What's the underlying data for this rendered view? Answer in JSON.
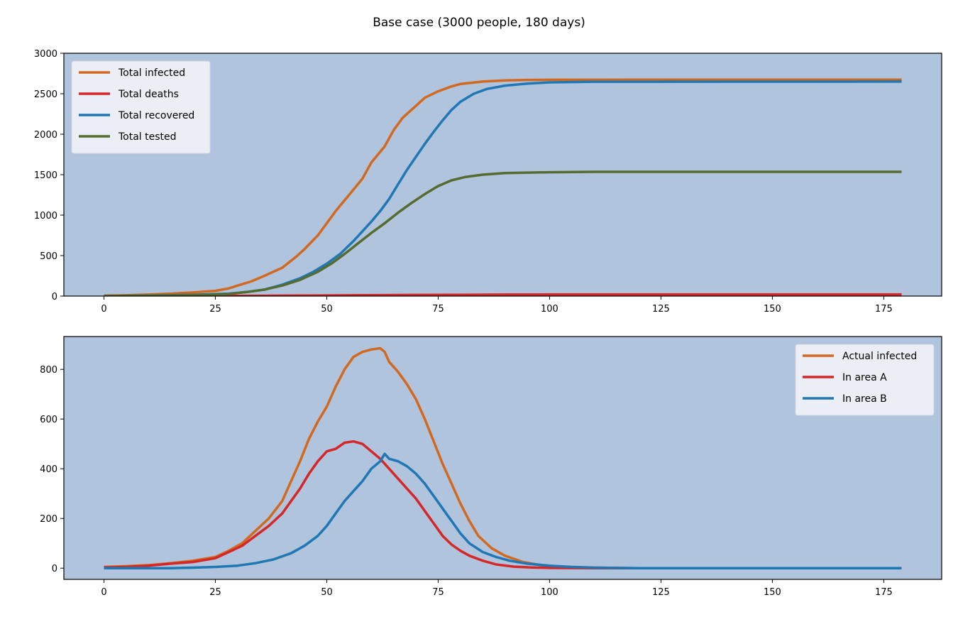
{
  "figure": {
    "title": "Base case (3000 people, 180 days)"
  },
  "colors": {
    "panel_background": "#b0c4de",
    "infected": "#d2691e",
    "deaths": "#d62728",
    "recovered": "#1f77b4",
    "tested": "#556b2f"
  },
  "chart_data": [
    {
      "type": "line",
      "xlabel": "",
      "ylabel": "",
      "xlim": [
        -9,
        188
      ],
      "ylim": [
        0,
        3000
      ],
      "xticks": [
        0,
        25,
        50,
        75,
        100,
        125,
        150,
        175
      ],
      "yticks": [
        0,
        500,
        1000,
        1500,
        2000,
        2500,
        3000
      ],
      "legend_position": "upper-left",
      "grid": false,
      "series": [
        {
          "name": "Total infected",
          "color": "#d2691e",
          "points": [
            [
              0,
              5
            ],
            [
              5,
              10
            ],
            [
              10,
              18
            ],
            [
              15,
              30
            ],
            [
              20,
              45
            ],
            [
              25,
              65
            ],
            [
              28,
              95
            ],
            [
              30,
              130
            ],
            [
              33,
              180
            ],
            [
              36,
              250
            ],
            [
              40,
              350
            ],
            [
              43,
              480
            ],
            [
              45,
              580
            ],
            [
              48,
              750
            ],
            [
              50,
              900
            ],
            [
              52,
              1050
            ],
            [
              55,
              1250
            ],
            [
              58,
              1450
            ],
            [
              60,
              1650
            ],
            [
              63,
              1850
            ],
            [
              65,
              2050
            ],
            [
              67,
              2200
            ],
            [
              70,
              2350
            ],
            [
              72,
              2450
            ],
            [
              75,
              2530
            ],
            [
              78,
              2590
            ],
            [
              80,
              2620
            ],
            [
              85,
              2650
            ],
            [
              90,
              2665
            ],
            [
              95,
              2670
            ],
            [
              100,
              2672
            ],
            [
              120,
              2673
            ],
            [
              179,
              2673
            ]
          ]
        },
        {
          "name": "Total deaths",
          "color": "#d62728",
          "points": [
            [
              0,
              0
            ],
            [
              30,
              2
            ],
            [
              40,
              5
            ],
            [
              50,
              8
            ],
            [
              60,
              11
            ],
            [
              70,
              14
            ],
            [
              80,
              16
            ],
            [
              90,
              18
            ],
            [
              100,
              19
            ],
            [
              179,
              19
            ]
          ]
        },
        {
          "name": "Total recovered",
          "color": "#1f77b4",
          "points": [
            [
              0,
              0
            ],
            [
              20,
              15
            ],
            [
              28,
              30
            ],
            [
              32,
              50
            ],
            [
              36,
              80
            ],
            [
              40,
              140
            ],
            [
              44,
              220
            ],
            [
              47,
              300
            ],
            [
              50,
              400
            ],
            [
              53,
              520
            ],
            [
              56,
              680
            ],
            [
              58,
              800
            ],
            [
              60,
              920
            ],
            [
              62,
              1050
            ],
            [
              64,
              1200
            ],
            [
              66,
              1380
            ],
            [
              68,
              1560
            ],
            [
              70,
              1720
            ],
            [
              72,
              1880
            ],
            [
              74,
              2030
            ],
            [
              76,
              2170
            ],
            [
              78,
              2300
            ],
            [
              80,
              2400
            ],
            [
              83,
              2500
            ],
            [
              86,
              2560
            ],
            [
              90,
              2600
            ],
            [
              95,
              2625
            ],
            [
              100,
              2640
            ],
            [
              110,
              2648
            ],
            [
              179,
              2650
            ]
          ]
        },
        {
          "name": "Total tested",
          "color": "#556b2f",
          "points": [
            [
              0,
              0
            ],
            [
              20,
              10
            ],
            [
              28,
              25
            ],
            [
              32,
              50
            ],
            [
              36,
              80
            ],
            [
              40,
              130
            ],
            [
              44,
              200
            ],
            [
              48,
              300
            ],
            [
              51,
              400
            ],
            [
              54,
              520
            ],
            [
              57,
              650
            ],
            [
              60,
              780
            ],
            [
              63,
              900
            ],
            [
              66,
              1030
            ],
            [
              69,
              1150
            ],
            [
              72,
              1260
            ],
            [
              75,
              1360
            ],
            [
              78,
              1430
            ],
            [
              81,
              1470
            ],
            [
              85,
              1500
            ],
            [
              90,
              1520
            ],
            [
              100,
              1530
            ],
            [
              110,
              1535
            ],
            [
              179,
              1535
            ]
          ]
        }
      ]
    },
    {
      "type": "line",
      "xlabel": "",
      "ylabel": "",
      "xlim": [
        -9,
        188
      ],
      "ylim": [
        -45,
        932
      ],
      "xticks": [
        0,
        25,
        50,
        75,
        100,
        125,
        150,
        175
      ],
      "yticks": [
        0,
        200,
        400,
        600,
        800
      ],
      "legend_position": "upper-right",
      "grid": false,
      "series": [
        {
          "name": "Actual infected",
          "color": "#d2691e",
          "points": [
            [
              0,
              5
            ],
            [
              5,
              8
            ],
            [
              10,
              12
            ],
            [
              15,
              20
            ],
            [
              20,
              30
            ],
            [
              25,
              45
            ],
            [
              28,
              70
            ],
            [
              31,
              100
            ],
            [
              34,
              150
            ],
            [
              37,
              200
            ],
            [
              40,
              270
            ],
            [
              42,
              350
            ],
            [
              44,
              430
            ],
            [
              46,
              520
            ],
            [
              48,
              590
            ],
            [
              50,
              650
            ],
            [
              52,
              730
            ],
            [
              54,
              800
            ],
            [
              56,
              850
            ],
            [
              58,
              870
            ],
            [
              60,
              880
            ],
            [
              62,
              885
            ],
            [
              63,
              870
            ],
            [
              64,
              830
            ],
            [
              66,
              790
            ],
            [
              68,
              740
            ],
            [
              70,
              680
            ],
            [
              72,
              600
            ],
            [
              74,
              510
            ],
            [
              76,
              420
            ],
            [
              78,
              340
            ],
            [
              80,
              260
            ],
            [
              82,
              190
            ],
            [
              84,
              130
            ],
            [
              87,
              80
            ],
            [
              90,
              50
            ],
            [
              94,
              25
            ],
            [
              98,
              12
            ],
            [
              102,
              6
            ],
            [
              110,
              2
            ],
            [
              120,
              0
            ],
            [
              179,
              0
            ]
          ]
        },
        {
          "name": "In area A",
          "color": "#d62728",
          "points": [
            [
              0,
              3
            ],
            [
              5,
              5
            ],
            [
              10,
              10
            ],
            [
              15,
              18
            ],
            [
              20,
              25
            ],
            [
              25,
              40
            ],
            [
              28,
              65
            ],
            [
              31,
              90
            ],
            [
              34,
              130
            ],
            [
              37,
              170
            ],
            [
              40,
              220
            ],
            [
              42,
              270
            ],
            [
              44,
              320
            ],
            [
              46,
              380
            ],
            [
              48,
              430
            ],
            [
              50,
              470
            ],
            [
              52,
              480
            ],
            [
              54,
              505
            ],
            [
              56,
              510
            ],
            [
              58,
              500
            ],
            [
              60,
              470
            ],
            [
              62,
              440
            ],
            [
              64,
              400
            ],
            [
              66,
              360
            ],
            [
              68,
              320
            ],
            [
              70,
              280
            ],
            [
              72,
              230
            ],
            [
              74,
              180
            ],
            [
              76,
              130
            ],
            [
              78,
              95
            ],
            [
              80,
              70
            ],
            [
              82,
              50
            ],
            [
              85,
              30
            ],
            [
              88,
              15
            ],
            [
              92,
              6
            ],
            [
              96,
              3
            ],
            [
              100,
              1
            ],
            [
              110,
              0
            ],
            [
              179,
              0
            ]
          ]
        },
        {
          "name": "In area B",
          "color": "#1f77b4",
          "points": [
            [
              0,
              0
            ],
            [
              15,
              0
            ],
            [
              20,
              2
            ],
            [
              25,
              5
            ],
            [
              30,
              10
            ],
            [
              34,
              20
            ],
            [
              38,
              35
            ],
            [
              42,
              60
            ],
            [
              45,
              90
            ],
            [
              48,
              130
            ],
            [
              50,
              170
            ],
            [
              52,
              220
            ],
            [
              54,
              270
            ],
            [
              56,
              310
            ],
            [
              58,
              350
            ],
            [
              60,
              400
            ],
            [
              62,
              430
            ],
            [
              63,
              460
            ],
            [
              64,
              440
            ],
            [
              66,
              430
            ],
            [
              68,
              410
            ],
            [
              70,
              380
            ],
            [
              72,
              340
            ],
            [
              74,
              290
            ],
            [
              76,
              240
            ],
            [
              78,
              190
            ],
            [
              80,
              140
            ],
            [
              82,
              100
            ],
            [
              85,
              65
            ],
            [
              88,
              45
            ],
            [
              91,
              30
            ],
            [
              95,
              18
            ],
            [
              100,
              10
            ],
            [
              105,
              5
            ],
            [
              110,
              2
            ],
            [
              120,
              0
            ],
            [
              179,
              0
            ]
          ]
        }
      ]
    }
  ]
}
